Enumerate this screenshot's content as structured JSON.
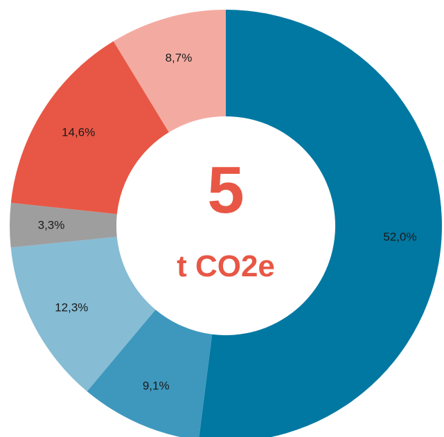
{
  "chart_data": {
    "type": "pie",
    "donut": true,
    "slices": [
      {
        "label": "52,0%",
        "value": 52.0,
        "color": "#0178a2"
      },
      {
        "label": "9,1%",
        "value": 9.1,
        "color": "#3e98bd"
      },
      {
        "label": "12,3%",
        "value": 12.3,
        "color": "#86bcd4"
      },
      {
        "label": "3,3%",
        "value": 3.3,
        "color": "#9e9e9e"
      },
      {
        "label": "14,6%",
        "value": 14.6,
        "color": "#e85745"
      },
      {
        "label": "8,7%",
        "value": 8.7,
        "color": "#f3aba1"
      }
    ],
    "center": {
      "value": "5",
      "unit": "t CO2e",
      "color": "#e85745"
    }
  }
}
